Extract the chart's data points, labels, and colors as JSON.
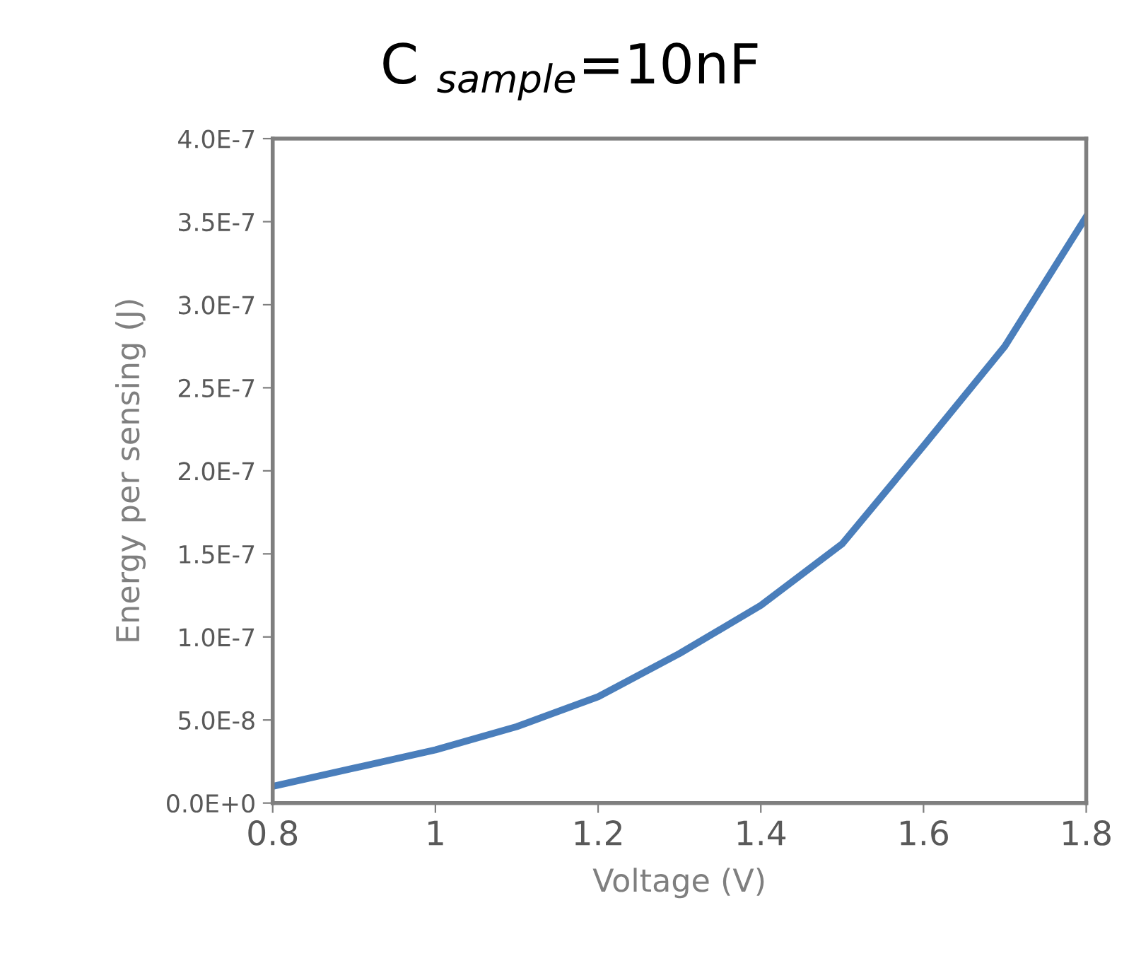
{
  "chart_data": {
    "type": "line",
    "title": "C $_{sample}$=10nF",
    "xlabel": "Voltage (V)",
    "ylabel": "Energy per sensing (J)",
    "x": [
      0.8,
      0.9,
      1.0,
      1.1,
      1.2,
      1.3,
      1.4,
      1.5,
      1.6,
      1.7,
      1.8
    ],
    "series": [
      {
        "color": "#4a7ebb",
        "values": [
          1e-08,
          2.1e-08,
          3.2e-08,
          4.6e-08,
          6.4e-08,
          9e-08,
          1.19e-07,
          1.56e-07,
          2.15e-07,
          2.75e-07,
          3.53e-07
        ]
      }
    ],
    "xlim": [
      0.8,
      1.8
    ],
    "xticks": [
      0.8,
      1,
      1.2,
      1.4,
      1.6,
      1.8
    ],
    "ylim": [
      0,
      4e-07
    ],
    "yticks": [
      {
        "value": 0,
        "label": "0.0E+0"
      },
      {
        "value": 5e-08,
        "label": "5.0E-8"
      },
      {
        "value": 1e-07,
        "label": "1.0E-7"
      },
      {
        "value": 1.5e-07,
        "label": "1.5E-7"
      },
      {
        "value": 2e-07,
        "label": "2.0E-7"
      },
      {
        "value": 2.5e-07,
        "label": "2.5E-7"
      },
      {
        "value": 3e-07,
        "label": "3.0E-7"
      },
      {
        "value": 3.5e-07,
        "label": "3.5E-7"
      },
      {
        "value": 4e-07,
        "label": "4.0E-7"
      }
    ],
    "grid": false,
    "legend": false,
    "marker": "none",
    "line_style": "solid"
  }
}
